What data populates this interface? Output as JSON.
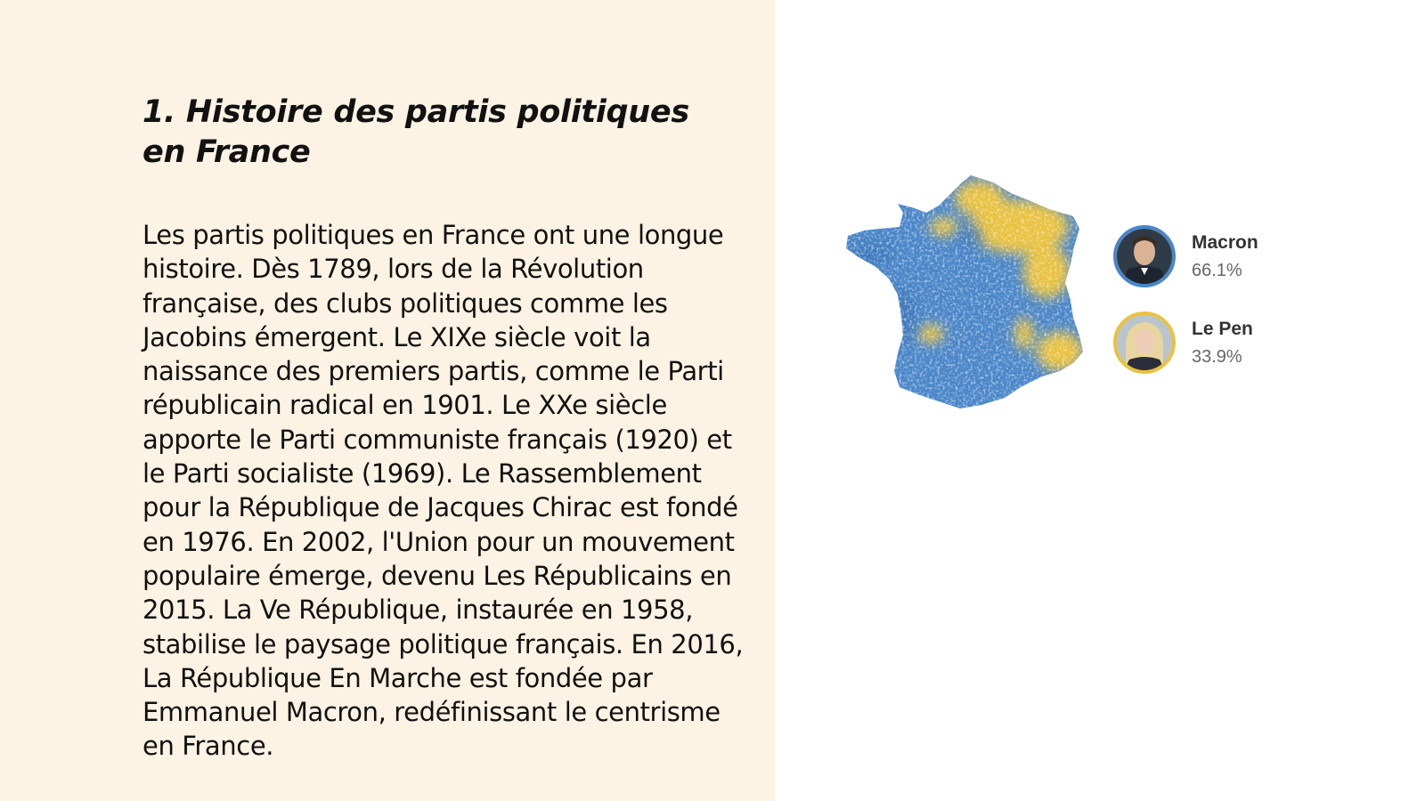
{
  "slide": {
    "title": "1. Histoire des partis politiques en France",
    "body": "Les partis politiques en France ont une longue histoire. Dès 1789, lors de la Révolution française, des clubs politiques comme les Jacobins émergent. Le XIXe siècle voit la naissance des premiers partis, comme le Parti républicain radical en 1901. Le XXe siècle apporte le Parti communiste français (1920) et le Parti socialiste (1969). Le Rassemblement pour la République de Jacques Chirac est fondé en 1976. En 2002, l'Union pour un mouvement populaire émerge, devenu Les Républicains en 2015. La Ve République, instaurée en 1958, stabilise le paysage politique français. En 2016, La République En Marche est fondée par Emmanuel Macron, redéfinissant le centrisme en France."
  },
  "colors": {
    "left_background": "#fdf3e4",
    "macron_blue": "#4a86c8",
    "lepen_yellow": "#e9c23f"
  },
  "map": {
    "icon": "france-election-map",
    "candidates": [
      {
        "name": "Macron",
        "percent": "66.1%",
        "color": "#4a86c8",
        "icon": "macron-portrait"
      },
      {
        "name": "Le Pen",
        "percent": "33.9%",
        "color": "#e9c23f",
        "icon": "le-pen-portrait"
      }
    ]
  }
}
